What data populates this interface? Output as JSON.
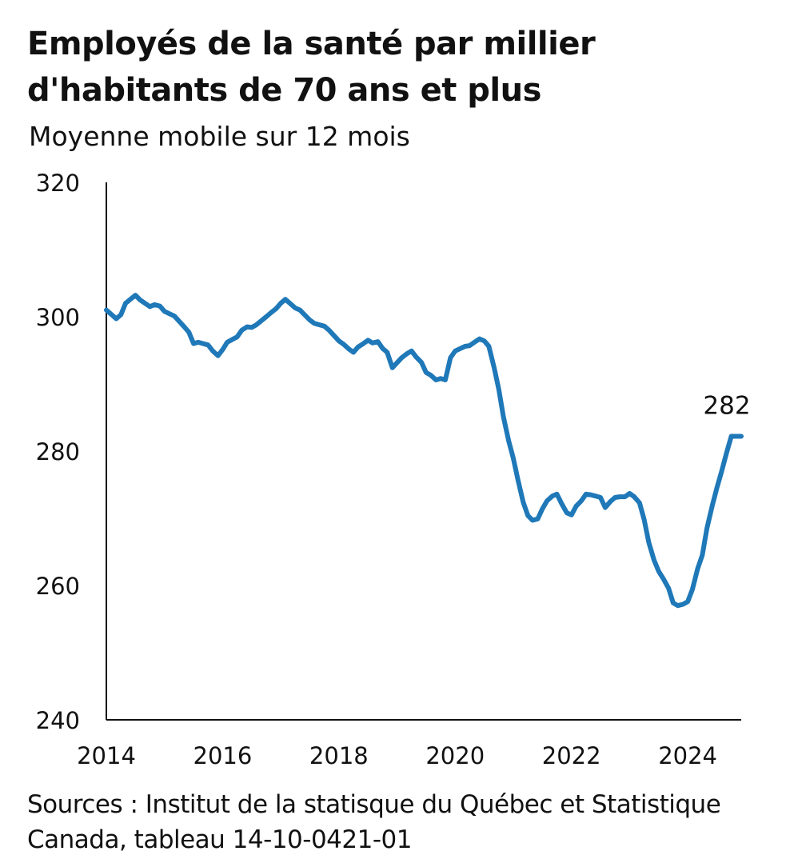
{
  "title": "Employés de la santé par millier d'habitants de 70 ans et plus",
  "subtitle": "Moyenne mobile sur 12 mois",
  "source": "Sources : Institut de la statisque du Québec et Statistique Canada, tableau 14-10-0421-01",
  "chart_data": {
    "type": "line",
    "title": "Employés de la santé par millier d'habitants de 70 ans et plus",
    "subtitle": "Moyenne mobile sur 12 mois",
    "xlabel": "",
    "ylabel": "",
    "ylim": [
      240,
      320
    ],
    "xlim": [
      2014.0,
      2024.92
    ],
    "yticks": [
      240,
      260,
      280,
      300,
      320
    ],
    "xticks": [
      2014,
      2016,
      2018,
      2020,
      2022,
      2024
    ],
    "grid": false,
    "line_color": "#1f78b8",
    "end_label": "282",
    "series": [
      {
        "name": "",
        "x": [
          2014.0,
          2014.17,
          2014.25,
          2014.33,
          2014.5,
          2014.58,
          2014.75,
          2014.83,
          2014.92,
          2015.0,
          2015.17,
          2015.33,
          2015.42,
          2015.5,
          2015.58,
          2015.75,
          2015.83,
          2015.92,
          2016.0,
          2016.08,
          2016.25,
          2016.33,
          2016.42,
          2016.5,
          2016.58,
          2016.75,
          2016.83,
          2016.92,
          2017.0,
          2017.08,
          2017.25,
          2017.33,
          2017.5,
          2017.58,
          2017.75,
          2017.83,
          2018.0,
          2018.08,
          2018.17,
          2018.25,
          2018.33,
          2018.42,
          2018.5,
          2018.58,
          2018.67,
          2018.75,
          2018.83,
          2018.92,
          2019.08,
          2019.17,
          2019.25,
          2019.33,
          2019.42,
          2019.5,
          2019.58,
          2019.67,
          2019.75,
          2019.83,
          2019.92,
          2020.0,
          2020.17,
          2020.25,
          2020.33,
          2020.42,
          2020.5,
          2020.58,
          2020.67,
          2020.75,
          2020.83,
          2020.92,
          2021.0,
          2021.08,
          2021.17,
          2021.25,
          2021.33,
          2021.42,
          2021.5,
          2021.58,
          2021.67,
          2021.75,
          2021.83,
          2021.92,
          2022.0,
          2022.08,
          2022.17,
          2022.25,
          2022.33,
          2022.42,
          2022.5,
          2022.58,
          2022.67,
          2022.75,
          2022.83,
          2022.92,
          2023.0,
          2023.08,
          2023.17,
          2023.25,
          2023.33,
          2023.42,
          2023.5,
          2023.58,
          2023.67,
          2023.75,
          2023.83,
          2023.92,
          2024.0,
          2024.08,
          2024.17,
          2024.25,
          2024.33,
          2024.42,
          2024.5,
          2024.58,
          2024.67,
          2024.75,
          2024.83,
          2024.92
        ],
        "y": [
          301.0,
          299.7,
          300.3,
          302.0,
          303.2,
          302.5,
          301.5,
          301.8,
          301.6,
          300.8,
          300.1,
          298.6,
          297.7,
          296.0,
          296.2,
          295.8,
          294.9,
          294.2,
          295.1,
          296.2,
          297.0,
          298.0,
          298.5,
          298.4,
          298.8,
          300.0,
          300.6,
          301.2,
          302.0,
          302.6,
          301.3,
          301.0,
          299.5,
          299.0,
          298.6,
          298.0,
          296.4,
          295.9,
          295.2,
          294.7,
          295.5,
          296.0,
          296.5,
          296.1,
          296.3,
          295.3,
          294.7,
          292.4,
          293.9,
          294.5,
          294.9,
          294.0,
          293.2,
          291.7,
          291.3,
          290.6,
          290.8,
          290.6,
          293.9,
          294.9,
          295.6,
          295.7,
          296.2,
          296.7,
          296.4,
          295.6,
          292.4,
          289.2,
          285.1,
          281.5,
          278.9,
          275.7,
          272.4,
          270.4,
          269.7,
          269.9,
          271.4,
          272.6,
          273.3,
          273.6,
          272.2,
          270.8,
          270.5,
          271.8,
          272.6,
          273.6,
          273.5,
          273.3,
          273.1,
          271.6,
          272.5,
          273.1,
          273.2,
          273.2,
          273.7,
          273.2,
          272.3,
          269.8,
          266.4,
          263.8,
          262.1,
          261.0,
          259.6,
          257.4,
          257.0,
          257.2,
          257.6,
          259.4,
          262.5,
          264.5,
          268.5,
          271.8,
          274.5,
          276.9,
          279.8,
          282.2,
          282.2,
          282.2
        ]
      }
    ]
  }
}
